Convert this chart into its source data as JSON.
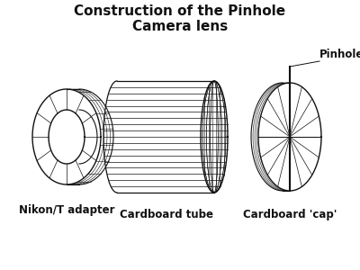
{
  "title": "Construction of the Pinhole\nCamera lens",
  "title_fontsize": 11,
  "title_fontweight": "bold",
  "bg_color": "#ffffff",
  "line_color": "#111111",
  "label1": "Nikon/T adapter",
  "label2": "Cardboard tube",
  "label3": "Cardboard 'cap'",
  "label_pinhole": "Pinhole",
  "label_fontsize": 8.5,
  "label_fontweight": "bold",
  "fig_w": 4.0,
  "fig_h": 3.0,
  "dpi": 100
}
